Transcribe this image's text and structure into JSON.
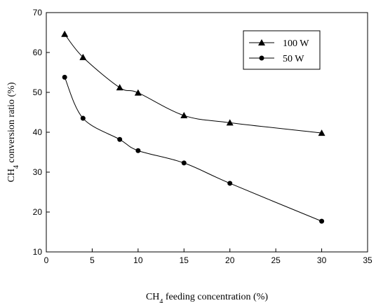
{
  "chart_data": {
    "type": "line",
    "xlabel": {
      "prefix": "CH",
      "sub": "4",
      "suffix": " feeding concentration (%)"
    },
    "ylabel": {
      "prefix": "CH",
      "sub": "4",
      "suffix": " conversion ratio (%)"
    },
    "xlim": [
      0,
      35
    ],
    "ylim": [
      10,
      70
    ],
    "xticks": [
      0,
      5,
      10,
      15,
      20,
      25,
      30,
      35
    ],
    "yticks": [
      10,
      20,
      30,
      40,
      50,
      60,
      70
    ],
    "grid": false,
    "legend_position": "top-right",
    "series": [
      {
        "name": "100 W",
        "marker": "triangle",
        "color": "#000000",
        "x": [
          2,
          4,
          8,
          10,
          15,
          20,
          30
        ],
        "y": [
          64.6,
          58.8,
          51.2,
          49.9,
          44.2,
          42.4,
          39.8
        ]
      },
      {
        "name": "50 W",
        "marker": "circle",
        "color": "#000000",
        "x": [
          2,
          4,
          8,
          10,
          15,
          20,
          30
        ],
        "y": [
          53.8,
          43.5,
          38.2,
          35.4,
          32.3,
          27.2,
          17.7
        ]
      }
    ]
  }
}
